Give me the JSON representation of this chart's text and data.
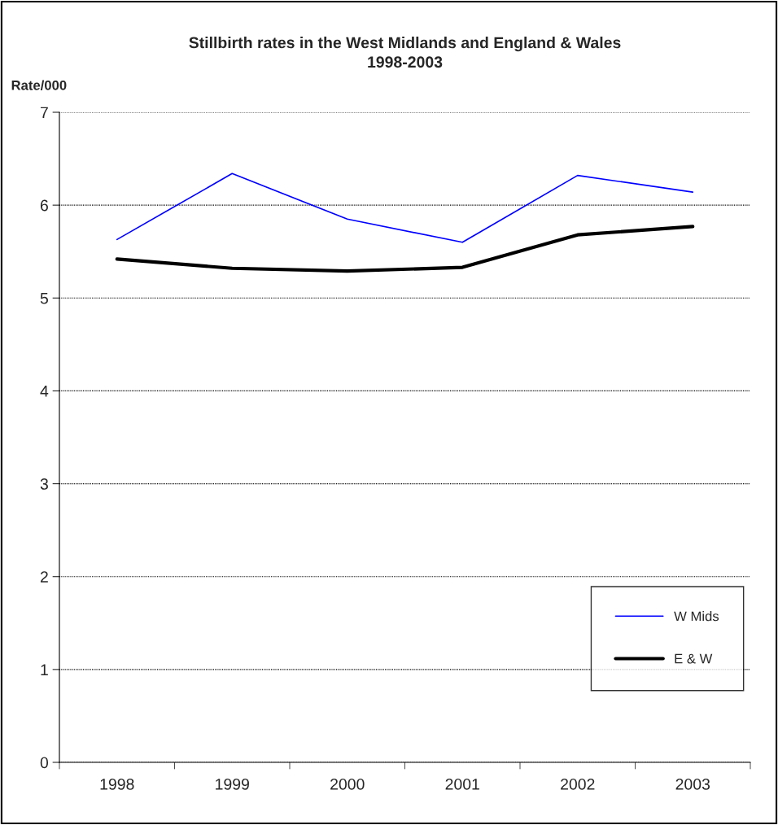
{
  "chart_data": {
    "type": "line",
    "title": "Stillbirth rates in the West Midlands and England & Wales\n1998-2003",
    "ylabel": "Rate/000",
    "categories": [
      "1998",
      "1999",
      "2000",
      "2001",
      "2002",
      "2003"
    ],
    "series": [
      {
        "name": "W Mids",
        "color": "#0000ff",
        "values": [
          5.63,
          6.34,
          5.85,
          5.6,
          6.32,
          6.14
        ]
      },
      {
        "name": "E & W",
        "color": "#000000",
        "values": [
          5.42,
          5.32,
          5.29,
          5.33,
          5.68,
          5.77
        ]
      }
    ],
    "ylim": [
      0,
      7
    ],
    "yticks": [
      0,
      1,
      2,
      3,
      4,
      5,
      6,
      7
    ],
    "grid": "y",
    "legend": "bottom right",
    "marker": "none",
    "line_style": "solid"
  }
}
